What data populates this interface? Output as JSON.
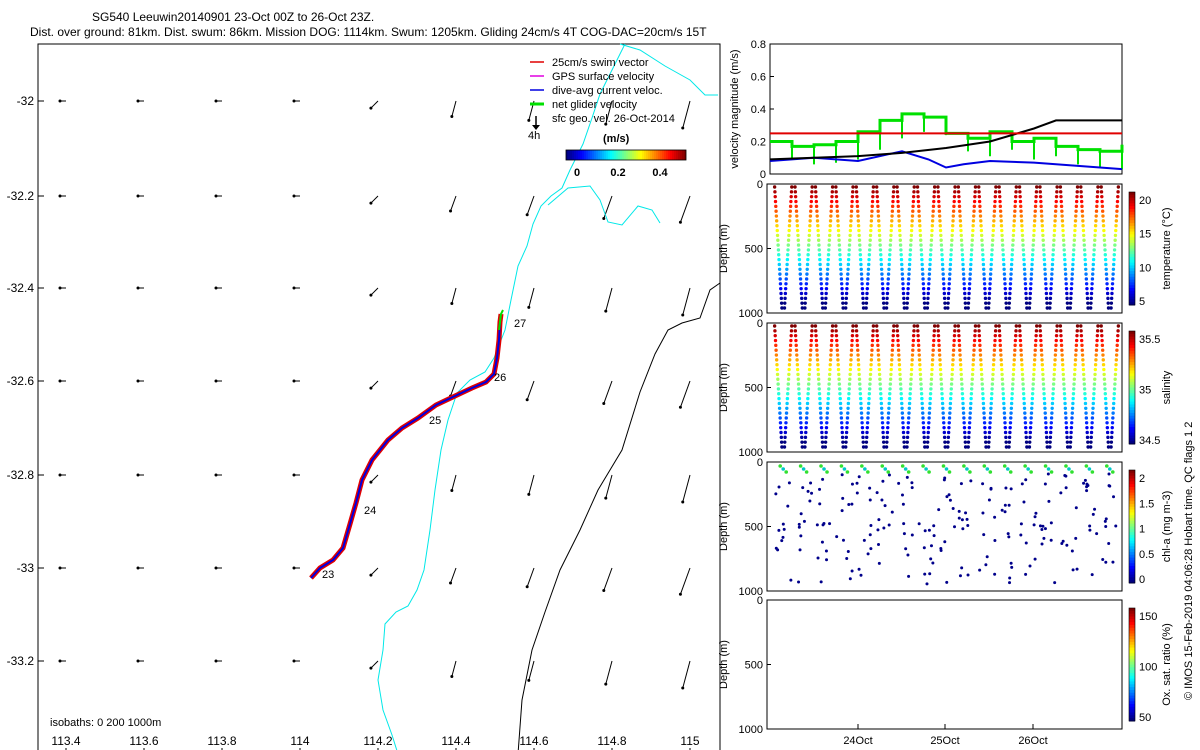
{
  "header": {
    "line1": "SG540 Leeuwin20140901 23-Oct 00Z to 26-Oct 23Z.",
    "line2": "Dist. over ground: 81km. Dist. swum: 86km. Mission DOG: 1114km. Swum: 1205km. Gliding 24cm/s 4T COG-DAC=20cm/s 15T"
  },
  "map": {
    "x_ticks": [
      "113.4",
      "113.6",
      "113.8",
      "114",
      "114.2",
      "114.4",
      "114.6",
      "114.8",
      "115"
    ],
    "y_ticks": [
      "-32",
      "-32.2",
      "-32.4",
      "-32.6",
      "-32.8",
      "-33",
      "-33.2"
    ],
    "isobaths_text": "isobaths: 0   200  1000m",
    "track_labels": [
      "23",
      "24",
      "25",
      "26",
      "27"
    ],
    "legend": [
      {
        "text": "25cm/s swim vector",
        "color": "#e00000"
      },
      {
        "text": "GPS surface velocity",
        "color": "#e000e0"
      },
      {
        "text": "dive-avg current veloc.",
        "color": "#0000e0"
      },
      {
        "text": "net glider velocity",
        "color": "#00e000"
      },
      {
        "text": "sfc geo. vel. 26-Oct-2014",
        "color": "#000000"
      }
    ],
    "legend_4h": "4h",
    "colorbar_title": "(m/s)",
    "colorbar_ticks": [
      "0",
      "0.2",
      "0.4"
    ]
  },
  "velocity_panel": {
    "ylabel": "velocity magnitude (m/s)",
    "y_ticks": [
      "0",
      "0.2",
      "0.4",
      "0.6",
      "0.8"
    ]
  },
  "profile_panels": [
    {
      "ylabel": "Depth (m)",
      "y_ticks": [
        "0",
        "500",
        "1000"
      ],
      "cb_label": "temperature (°C)",
      "cb_ticks": [
        "5",
        "10",
        "15",
        "20"
      ]
    },
    {
      "ylabel": "Depth (m)",
      "y_ticks": [
        "0",
        "500",
        "1000"
      ],
      "cb_label": "salinity",
      "cb_ticks": [
        "34.5",
        "35",
        "35.5"
      ]
    },
    {
      "ylabel": "Depth (m)",
      "y_ticks": [
        "0",
        "500",
        "1000"
      ],
      "cb_label": "chl-a (mg m-3)",
      "cb_ticks": [
        "0",
        "0.5",
        "1",
        "1.5",
        "2"
      ]
    },
    {
      "ylabel": "Depth (m)",
      "y_ticks": [
        "0",
        "500",
        "1000"
      ],
      "cb_label": "Ox. sat. ratio (%)",
      "cb_ticks": [
        "50",
        "100",
        "150"
      ]
    }
  ],
  "time_ticks": [
    "24Oct",
    "25Oct",
    "26Oct"
  ],
  "side_note": "© IMOS 15-Feb-2019 04:06:28 Hobart time. QC flags 1  2",
  "colors": {
    "coast": "#00e8e8",
    "isobath": "#000000",
    "swim": "#e00000",
    "dac": "#0000e0",
    "net": "#00e000",
    "threshold": "#e00000"
  },
  "chart_data": {
    "type": "line",
    "title": "velocity magnitude",
    "ylabel": "velocity magnitude (m/s)",
    "ylim": [
      0,
      0.8
    ],
    "series": [
      {
        "name": "net glider velocity",
        "x": [
          0,
          0.25,
          0.5,
          0.75,
          1,
          1.25,
          1.5,
          1.75,
          2,
          2.25,
          2.5,
          2.75,
          3,
          3.25,
          3.5,
          3.75,
          4
        ],
        "values": [
          0.2,
          0.17,
          0.18,
          0.2,
          0.26,
          0.33,
          0.37,
          0.35,
          0.25,
          0.22,
          0.26,
          0.2,
          0.22,
          0.17,
          0.15,
          0.14,
          0.18
        ]
      },
      {
        "name": "dive-avg current veloc.",
        "x": [
          0,
          0.5,
          1,
          1.5,
          1.8,
          2,
          2.2,
          2.5,
          3,
          3.5,
          4
        ],
        "values": [
          0.08,
          0.1,
          0.08,
          0.14,
          0.09,
          0.04,
          0.06,
          0.08,
          0.07,
          0.05,
          0.03
        ]
      },
      {
        "name": "COG speed",
        "x": [
          0,
          0.5,
          1,
          1.5,
          2,
          2.5,
          3,
          3.25,
          4
        ],
        "values": [
          0.09,
          0.1,
          0.11,
          0.13,
          0.16,
          0.2,
          0.28,
          0.33,
          0.33
        ]
      },
      {
        "name": "threshold 25cm/s",
        "x": [
          0,
          4
        ],
        "values": [
          0.25,
          0.25
        ]
      }
    ]
  }
}
